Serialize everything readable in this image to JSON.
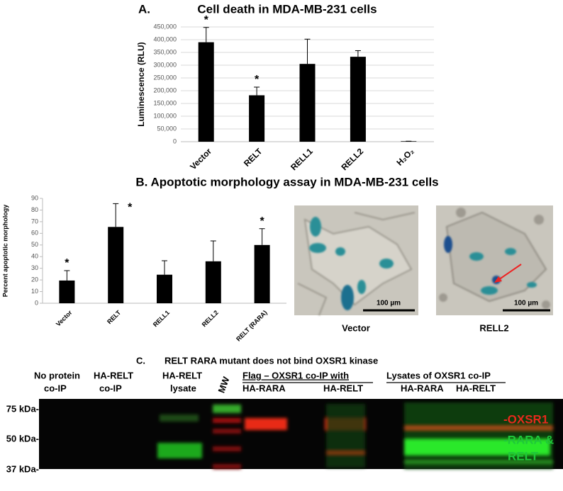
{
  "chart_data": [
    {
      "type": "bar",
      "panel_label": "A.",
      "title": "Cell death in MDA-MB-231 cells",
      "y_label": "Luminescence (RLU)",
      "categories": [
        "Vector",
        "RELT",
        "RELL1",
        "RELL2",
        "H₂O₂"
      ],
      "values": [
        390000,
        182000,
        305000,
        333000,
        2000
      ],
      "errors": [
        58000,
        32000,
        97000,
        24000,
        0
      ],
      "color": "#000000",
      "ylim": [
        0,
        450000
      ],
      "yticks": [
        0,
        {
          "value": 50000,
          "label": "50,000"
        },
        {
          "value": 100000,
          "label": "100,000"
        },
        {
          "value": 150000,
          "label": "150,000"
        },
        {
          "value": 200000,
          "label": "200,000"
        },
        {
          "value": 250000,
          "label": "250,000"
        },
        {
          "value": 300000,
          "label": "300,000"
        },
        {
          "value": 350000,
          "label": "350,000"
        },
        {
          "value": 400000,
          "label": "400,000"
        },
        {
          "value": 450000,
          "label": "450,000"
        }
      ],
      "grid": true,
      "annotations": [
        {
          "label": "*",
          "category": "Vector"
        },
        {
          "label": "*",
          "category": "RELT"
        }
      ]
    },
    {
      "type": "bar",
      "title": "B. Apoptotic morphology assay in MDA-MB-231 cells",
      "y_label": "Percent apoptotic morphology",
      "categories": [
        "Vector",
        "RELT",
        "RELL1",
        "RELL2",
        "RELT (RARA)"
      ],
      "values": [
        19.5,
        65.5,
        24.5,
        36,
        50
      ],
      "errors": [
        8.5,
        20,
        12,
        17.5,
        14
      ],
      "color": "#000000",
      "ylim": [
        0,
        90
      ],
      "yticks": [
        0,
        10,
        20,
        30,
        40,
        50,
        60,
        70,
        80,
        90
      ],
      "grid": false,
      "annotations": [
        {
          "label": "*",
          "category": "Vector"
        },
        {
          "label": "*",
          "category": "RELT"
        },
        {
          "label": "*",
          "category": "RELT (RARA)"
        }
      ]
    }
  ],
  "micrographs": [
    {
      "caption": "Vector",
      "scale_bar": "100 µm"
    },
    {
      "caption": "RELL2",
      "scale_bar": "100 µm"
    }
  ],
  "blot": {
    "panel_label": "C.",
    "title": "RELT RARA mutant does not bind OXSR1 kinase",
    "lanes": [
      [
        "No protein",
        "co-IP"
      ],
      [
        "HA-RELT",
        "co-IP"
      ],
      [
        "HA-RELT",
        "lysate"
      ],
      [
        "MW"
      ]
    ],
    "groups": [
      {
        "title": "Flag – OXSR1 co-IP with",
        "lanes": [
          "HA-RARA",
          "HA-RELT"
        ]
      },
      {
        "title": "Lysates of OXSR1 co-IP",
        "lanes": [
          "HA-RARA",
          "HA-RELT"
        ]
      }
    ],
    "markers": [
      "75 kDa-",
      "50 kDa-",
      "37 kDa-"
    ],
    "bands": [
      "-OXSR1",
      [
        "-RARA &",
        "RELT"
      ]
    ]
  }
}
